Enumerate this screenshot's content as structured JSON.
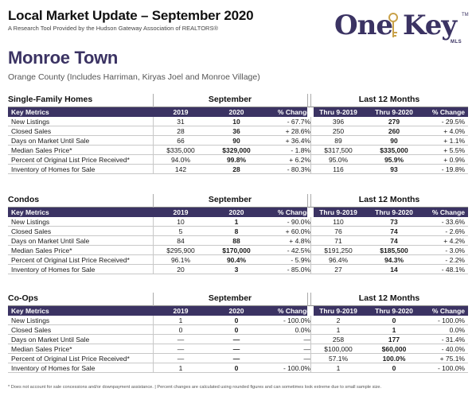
{
  "header": {
    "title": "Local Market Update – September 2020",
    "subtitle": "A Research Tool Provided by the Hudson Gateway Association of REALTORS®",
    "logo": {
      "part1": "One",
      "part2": "Key",
      "tm": "TM",
      "mls": "MLS",
      "icon": "key-icon"
    }
  },
  "location": {
    "town": "Monroe Town",
    "county": "Orange County (Includes Harriman, Kiryas Joel and Monroe Village)"
  },
  "columns": {
    "key_metrics": "Key Metrics",
    "y2019": "2019",
    "y2020": "2020",
    "pct_change": "% Change",
    "thru2019": "Thru 9-2019",
    "thru2020": "Thru 9-2020"
  },
  "periods": {
    "month": "September",
    "last12": "Last 12 Months"
  },
  "sections": [
    {
      "name": "Single-Family Homes",
      "rows": [
        [
          "New Listings",
          "31",
          "10",
          "- 67.7%",
          "396",
          "279",
          "- 29.5%"
        ],
        [
          "Closed Sales",
          "28",
          "36",
          "+ 28.6%",
          "250",
          "260",
          "+ 4.0%"
        ],
        [
          "Days on Market Until Sale",
          "66",
          "90",
          "+ 36.4%",
          "89",
          "90",
          "+ 1.1%"
        ],
        [
          "Median Sales Price*",
          "$335,000",
          "$329,000",
          "- 1.8%",
          "$317,500",
          "$335,000",
          "+ 5.5%"
        ],
        [
          "Percent of Original List Price Received*",
          "94.0%",
          "99.8%",
          "+ 6.2%",
          "95.0%",
          "95.9%",
          "+ 0.9%"
        ],
        [
          "Inventory of Homes for Sale",
          "142",
          "28",
          "- 80.3%",
          "116",
          "93",
          "- 19.8%"
        ]
      ]
    },
    {
      "name": "Condos",
      "rows": [
        [
          "New Listings",
          "10",
          "1",
          "- 90.0%",
          "110",
          "73",
          "- 33.6%"
        ],
        [
          "Closed Sales",
          "5",
          "8",
          "+ 60.0%",
          "76",
          "74",
          "- 2.6%"
        ],
        [
          "Days on Market Until Sale",
          "84",
          "88",
          "+ 4.8%",
          "71",
          "74",
          "+ 4.2%"
        ],
        [
          "Median Sales Price*",
          "$295,900",
          "$170,000",
          "- 42.5%",
          "$191,250",
          "$185,500",
          "- 3.0%"
        ],
        [
          "Percent of Original List Price Received*",
          "96.1%",
          "90.4%",
          "- 5.9%",
          "96.4%",
          "94.3%",
          "- 2.2%"
        ],
        [
          "Inventory of Homes for Sale",
          "20",
          "3",
          "- 85.0%",
          "27",
          "14",
          "- 48.1%"
        ]
      ]
    },
    {
      "name": "Co-Ops",
      "rows": [
        [
          "New Listings",
          "1",
          "0",
          "- 100.0%",
          "2",
          "0",
          "- 100.0%"
        ],
        [
          "Closed Sales",
          "0",
          "0",
          "0.0%",
          "1",
          "1",
          "0.0%"
        ],
        [
          "Days on Market Until Sale",
          "—",
          "—",
          "—",
          "258",
          "177",
          "- 31.4%"
        ],
        [
          "Median Sales Price*",
          "—",
          "—",
          "—",
          "$100,000",
          "$60,000",
          "- 40.0%"
        ],
        [
          "Percent of Original List Price Received*",
          "—",
          "—",
          "—",
          "57.1%",
          "100.0%",
          "+ 75.1%"
        ],
        [
          "Inventory of Homes for Sale",
          "1",
          "0",
          "- 100.0%",
          "1",
          "0",
          "- 100.0%"
        ]
      ]
    }
  ],
  "footnote": "* Does not account for sale concessions and/or downpayment assistance. | Percent changes are calculated using rounded figures and can sometimes look extreme due to small sample size.",
  "colors": {
    "brand": "#3b3363"
  }
}
